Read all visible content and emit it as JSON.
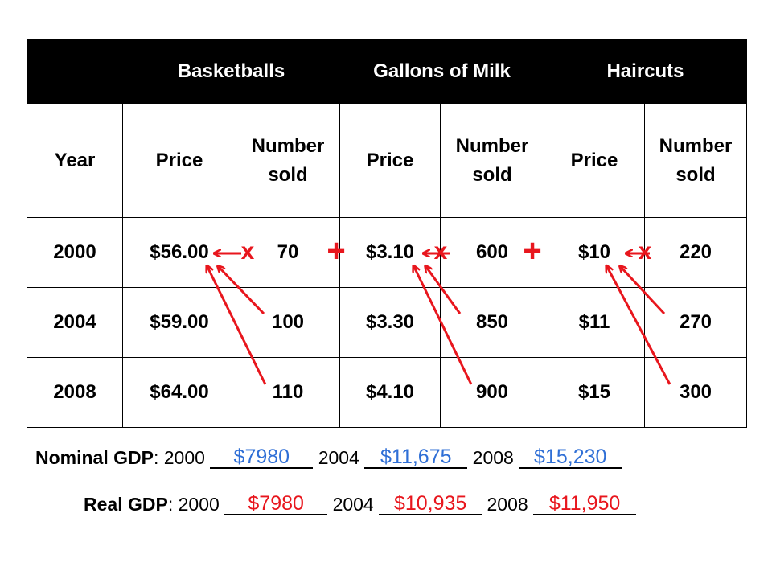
{
  "table": {
    "groups": [
      "Basketballs",
      "Gallons of Milk",
      "Haircuts"
    ],
    "year_header": "Year",
    "price_header": "Price",
    "number_sold_header_line1": "Number",
    "number_sold_header_line2": "sold",
    "rows": [
      {
        "year": "2000",
        "bb_price": "$56.00",
        "bb_sold": "70",
        "milk_price": "$3.10",
        "milk_sold": "600",
        "hc_price": "$10",
        "hc_sold": "220"
      },
      {
        "year": "2004",
        "bb_price": "$59.00",
        "bb_sold": "100",
        "milk_price": "$3.30",
        "milk_sold": "850",
        "hc_price": "$11",
        "hc_sold": "270"
      },
      {
        "year": "2008",
        "bb_price": "$64.00",
        "bb_sold": "110",
        "milk_price": "$4.10",
        "milk_sold": "900",
        "hc_price": "$15",
        "hc_sold": "300"
      }
    ]
  },
  "annotations": {
    "multiply_symbol": "x",
    "plus_symbol": "+",
    "arrow_color": "#e8161d"
  },
  "nominal_gdp": {
    "label": "Nominal GDP",
    "colon": ":",
    "year1": "2000",
    "value1": "$7980",
    "year2": "2004",
    "value2": "$11,675",
    "year3": "2008",
    "value3": "$15,230",
    "answer_color": "#2f6fd6"
  },
  "real_gdp": {
    "label": "Real GDP",
    "colon": ":",
    "year1": "2000",
    "value1": "$7980",
    "year2": "2004",
    "value2": "$10,935",
    "year3": "2008",
    "value3": "$11,950",
    "answer_color": "#e8161d"
  }
}
